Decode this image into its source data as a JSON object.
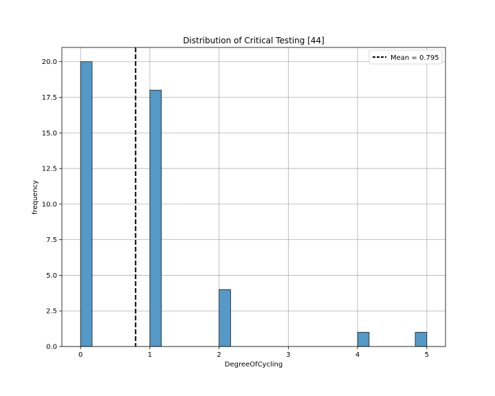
{
  "chart_data": {
    "type": "bar",
    "title": "Distribution of Critical Testing [44]",
    "xlabel": "DegreeOfCycling",
    "ylabel": "frequency",
    "xlim": [
      -0.27,
      5.27
    ],
    "ylim": [
      0,
      21
    ],
    "xticks": [
      0,
      1,
      2,
      3,
      4,
      5
    ],
    "xtick_labels": [
      "0",
      "1",
      "2",
      "3",
      "4",
      "5"
    ],
    "yticks": [
      0.0,
      2.5,
      5.0,
      7.5,
      10.0,
      12.5,
      15.0,
      17.5,
      20.0
    ],
    "ytick_labels": [
      "0.0",
      "2.5",
      "5.0",
      "7.5",
      "10.0",
      "12.5",
      "15.0",
      "17.5",
      "20.0"
    ],
    "grid": true,
    "bin_width": 0.167,
    "bars": [
      {
        "x_start": 0.0,
        "x_end": 0.167,
        "value": 20
      },
      {
        "x_start": 1.0,
        "x_end": 1.167,
        "value": 18
      },
      {
        "x_start": 2.0,
        "x_end": 2.167,
        "value": 4
      },
      {
        "x_start": 4.0,
        "x_end": 4.167,
        "value": 1
      },
      {
        "x_start": 4.833,
        "x_end": 5.0,
        "value": 1
      }
    ],
    "mean": 0.795,
    "legend": {
      "label": "Mean = 0.795",
      "placement": "top-right"
    },
    "colors": {
      "bar_fill": "#5499c7",
      "bar_edge": "#1a1a1a",
      "mean_line": "#000000",
      "grid": "#b0b0b0"
    }
  }
}
